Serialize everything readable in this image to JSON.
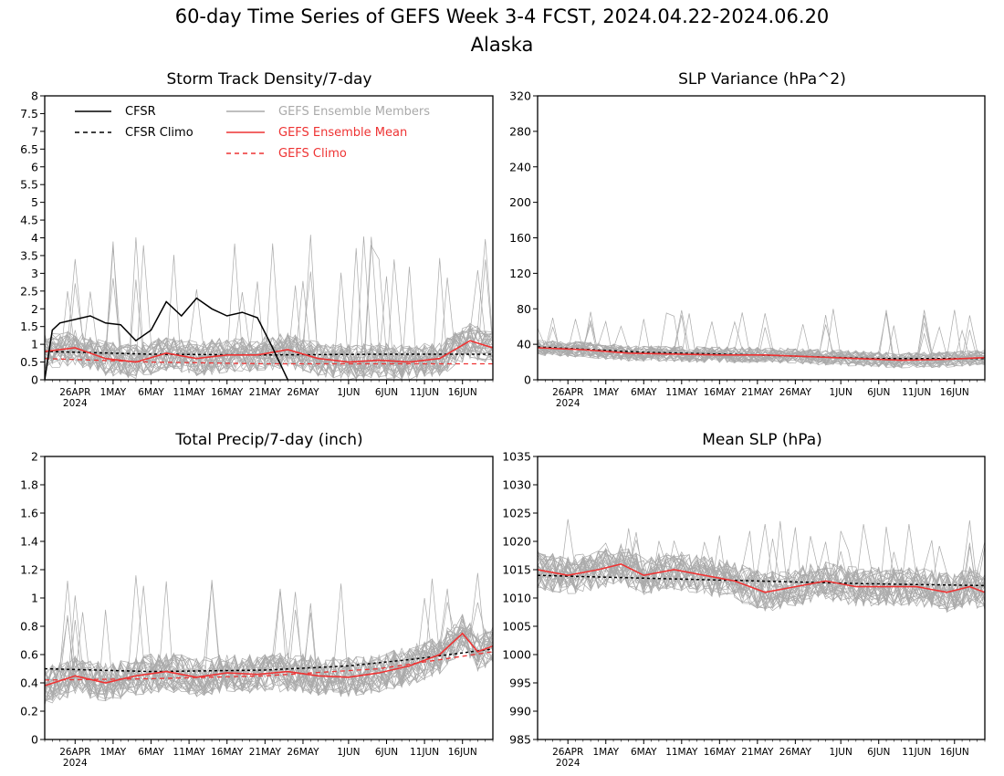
{
  "figure": {
    "title": "60-day Time Series of GEFS Week 3-4 FCST, 2024.04.22-2024.06.20",
    "subtitle": "Alaska"
  },
  "x_axis": {
    "start_date": "2024-04-22",
    "end_date": "2024-06-20",
    "tick_labels": [
      "26APR",
      "1MAY",
      "6MAY",
      "11MAY",
      "16MAY",
      "21MAY",
      "26MAY",
      "1JUN",
      "6JUN",
      "11JUN",
      "16JUN"
    ],
    "tick_dates": [
      "2024-04-26",
      "2024-05-01",
      "2024-05-06",
      "2024-05-11",
      "2024-05-16",
      "2024-05-21",
      "2024-05-26",
      "2024-06-01",
      "2024-06-06",
      "2024-06-11",
      "2024-06-16"
    ],
    "year_label": "2024"
  },
  "colors": {
    "cfsr": "#000000",
    "members": "#aaaaaa",
    "ens_mean": "#ee3333",
    "gefs_climo": "#ee3333"
  },
  "legend": {
    "placement": "top-left of first panel",
    "cfsr": "CFSR",
    "cfsr_climo": "CFSR Climo",
    "members": "GEFS Ensemble Members",
    "ens_mean": "GEFS Ensemble Mean",
    "gefs_climo": "GEFS Climo"
  },
  "chart_data": [
    {
      "type": "line",
      "title": "Storm Track Density/7-day",
      "ylim": [
        0,
        8
      ],
      "yticks": [
        0,
        0.5,
        1,
        1.5,
        2,
        2.5,
        3,
        3.5,
        4,
        4.5,
        5,
        5.5,
        6,
        6.5,
        7,
        7.5,
        8
      ],
      "ytick_labels": [
        "0",
        "0.5",
        "1",
        "1.5",
        "2",
        "2.5",
        "3",
        "3.5",
        "4",
        "4.5",
        "5",
        "5.5",
        "6",
        "6.5",
        "7",
        "7.5",
        "8"
      ],
      "members": {
        "count": 31,
        "center": 0.75,
        "spread": 0.5,
        "extreme": 4.1
      },
      "series": [
        {
          "role": "cfsr",
          "x": [
            "2024-04-22",
            "2024-04-23",
            "2024-04-24",
            "2024-04-26",
            "2024-04-28",
            "2024-04-30",
            "2024-05-02",
            "2024-05-04",
            "2024-05-06",
            "2024-05-08",
            "2024-05-10",
            "2024-05-12",
            "2024-05-14",
            "2024-05-16",
            "2024-05-18",
            "2024-05-20",
            "2024-05-22",
            "2024-05-24"
          ],
          "y": [
            0,
            1.4,
            1.6,
            1.7,
            1.8,
            1.6,
            1.55,
            1.1,
            1.4,
            2.2,
            1.8,
            2.3,
            2.0,
            1.8,
            1.9,
            1.75,
            0.9,
            0
          ]
        },
        {
          "role": "cfsr_climo",
          "x": [
            "2024-04-22",
            "2024-05-06",
            "2024-05-21",
            "2024-06-05",
            "2024-06-20"
          ],
          "y": [
            0.8,
            0.72,
            0.7,
            0.72,
            0.72
          ]
        },
        {
          "role": "ens_mean",
          "x": [
            "2024-04-22",
            "2024-04-26",
            "2024-04-30",
            "2024-05-04",
            "2024-05-08",
            "2024-05-12",
            "2024-05-16",
            "2024-05-20",
            "2024-05-24",
            "2024-05-28",
            "2024-06-01",
            "2024-06-05",
            "2024-06-09",
            "2024-06-13",
            "2024-06-17",
            "2024-06-20"
          ],
          "y": [
            0.8,
            0.9,
            0.6,
            0.5,
            0.75,
            0.6,
            0.7,
            0.7,
            0.85,
            0.6,
            0.5,
            0.55,
            0.5,
            0.6,
            1.1,
            0.9
          ]
        },
        {
          "role": "gefs_climo",
          "x": [
            "2024-04-22",
            "2024-05-06",
            "2024-05-21",
            "2024-06-05",
            "2024-06-20"
          ],
          "y": [
            0.6,
            0.5,
            0.45,
            0.45,
            0.45
          ]
        }
      ]
    },
    {
      "type": "line",
      "title": "SLP Variance (hPa^2)",
      "ylim": [
        0,
        320
      ],
      "yticks": [
        0,
        40,
        80,
        120,
        160,
        200,
        240,
        280,
        320
      ],
      "ytick_labels": [
        "0",
        "40",
        "80",
        "120",
        "160",
        "200",
        "240",
        "280",
        "320"
      ],
      "members": {
        "count": 31,
        "center": 30,
        "spread": 9,
        "extreme": 80
      },
      "series": [
        {
          "role": "cfsr_climo",
          "x": [
            "2024-04-22",
            "2024-05-06",
            "2024-05-21",
            "2024-06-05",
            "2024-06-20"
          ],
          "y": [
            37,
            31,
            28,
            24,
            24
          ]
        },
        {
          "role": "ens_mean",
          "x": [
            "2024-04-22",
            "2024-04-28",
            "2024-05-04",
            "2024-05-10",
            "2024-05-16",
            "2024-05-22",
            "2024-05-28",
            "2024-06-03",
            "2024-06-09",
            "2024-06-15",
            "2024-06-20"
          ],
          "y": [
            36,
            34,
            30,
            29,
            28,
            28,
            26,
            24,
            22,
            23,
            25
          ]
        }
      ]
    },
    {
      "type": "line",
      "title": "Total Precip/7-day (inch)",
      "ylim": [
        0,
        2
      ],
      "yticks": [
        0,
        0.2,
        0.4,
        0.6,
        0.8,
        1,
        1.2,
        1.4,
        1.6,
        1.8,
        2
      ],
      "ytick_labels": [
        "0",
        "0.2",
        "0.4",
        "0.6",
        "0.8",
        "1",
        "1.2",
        "1.4",
        "1.6",
        "1.8",
        "2"
      ],
      "members": {
        "count": 31,
        "center": 0.47,
        "spread": 0.14,
        "extreme": 1.2
      },
      "series": [
        {
          "role": "cfsr_climo",
          "x": [
            "2024-04-22",
            "2024-05-06",
            "2024-05-21",
            "2024-06-01",
            "2024-06-10",
            "2024-06-20"
          ],
          "y": [
            0.5,
            0.48,
            0.49,
            0.52,
            0.57,
            0.64
          ]
        },
        {
          "role": "ens_mean",
          "x": [
            "2024-04-22",
            "2024-04-26",
            "2024-04-30",
            "2024-05-04",
            "2024-05-08",
            "2024-05-12",
            "2024-05-16",
            "2024-05-20",
            "2024-05-24",
            "2024-05-28",
            "2024-06-01",
            "2024-06-05",
            "2024-06-09",
            "2024-06-13",
            "2024-06-16",
            "2024-06-18",
            "2024-06-20"
          ],
          "y": [
            0.38,
            0.45,
            0.4,
            0.45,
            0.48,
            0.44,
            0.47,
            0.46,
            0.48,
            0.45,
            0.44,
            0.47,
            0.52,
            0.6,
            0.75,
            0.62,
            0.66
          ]
        },
        {
          "role": "gefs_climo",
          "x": [
            "2024-04-22",
            "2024-05-06",
            "2024-05-21",
            "2024-06-05",
            "2024-06-20"
          ],
          "y": [
            0.42,
            0.43,
            0.45,
            0.5,
            0.62
          ]
        }
      ]
    },
    {
      "type": "line",
      "title": "Mean SLP (hPa)",
      "ylim": [
        985,
        1035
      ],
      "yticks": [
        985,
        990,
        995,
        1000,
        1005,
        1010,
        1015,
        1020,
        1025,
        1030,
        1035
      ],
      "ytick_labels": [
        "985",
        "990",
        "995",
        "1000",
        "1005",
        "1010",
        "1015",
        "1020",
        "1025",
        "1030",
        "1035"
      ],
      "members": {
        "count": 31,
        "center": 1013,
        "spread": 3.5,
        "extreme": 1024
      },
      "series": [
        {
          "role": "cfsr_climo",
          "x": [
            "2024-04-22",
            "2024-05-06",
            "2024-05-21",
            "2024-06-05",
            "2024-06-20"
          ],
          "y": [
            1014,
            1013.5,
            1013,
            1012.5,
            1012.2
          ]
        },
        {
          "role": "ens_mean",
          "x": [
            "2024-04-22",
            "2024-04-26",
            "2024-04-30",
            "2024-05-03",
            "2024-05-06",
            "2024-05-10",
            "2024-05-14",
            "2024-05-18",
            "2024-05-22",
            "2024-05-26",
            "2024-05-30",
            "2024-06-03",
            "2024-06-07",
            "2024-06-11",
            "2024-06-15",
            "2024-06-18",
            "2024-06-20"
          ],
          "y": [
            1015,
            1014,
            1015,
            1016,
            1014,
            1015,
            1014,
            1013,
            1011,
            1012,
            1013,
            1012,
            1012,
            1012,
            1011,
            1012,
            1011
          ]
        }
      ]
    }
  ]
}
